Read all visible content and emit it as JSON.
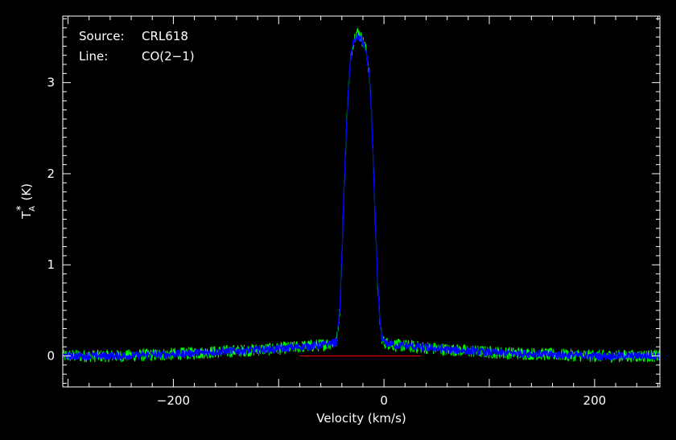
{
  "chart_data": {
    "type": "line",
    "title": "",
    "annotations": {
      "source_label": "Source:",
      "source_value": "CRL618",
      "line_label": "Line:",
      "line_value": "CO(2−1)"
    },
    "xlabel": "Velocity (km/s)",
    "ylabel": {
      "main": "T",
      "superscript": "*",
      "subscript": "A",
      "unit": "(K)"
    },
    "xlim": [
      -305,
      262
    ],
    "ylim": [
      -0.34,
      3.73
    ],
    "x_ticks": [
      -200,
      0,
      200
    ],
    "x_tick_labels": [
      "−200",
      "0",
      "200"
    ],
    "y_ticks": [
      0,
      1,
      2,
      3
    ],
    "y_tick_labels": [
      "0",
      "1",
      "2",
      "3"
    ],
    "grid": false,
    "series": [
      {
        "color": "#00ff00",
        "noise_amplitude": 0.07,
        "x": [
          -305,
          -250,
          -200,
          -150,
          -100,
          -60,
          -45,
          -42,
          -40,
          -38,
          -36,
          -34,
          -32,
          -30,
          -28,
          -26,
          -24,
          -22,
          -20,
          -18,
          -16,
          -14,
          -12,
          -10,
          -8,
          -6,
          -4,
          -2,
          0,
          10,
          30,
          60,
          100,
          150,
          200,
          262
        ],
        "values": [
          0.0,
          0.0,
          0.02,
          0.05,
          0.08,
          0.12,
          0.15,
          0.5,
          1.1,
          1.8,
          2.4,
          2.9,
          3.2,
          3.4,
          3.5,
          3.55,
          3.55,
          3.5,
          3.45,
          3.4,
          3.3,
          3.1,
          2.7,
          2.1,
          1.4,
          0.8,
          0.4,
          0.2,
          0.15,
          0.12,
          0.1,
          0.07,
          0.04,
          0.02,
          0.0,
          0.0
        ]
      },
      {
        "color": "#0000ff",
        "noise_amplitude": 0.045,
        "x": [
          -305,
          -250,
          -200,
          -150,
          -100,
          -60,
          -45,
          -42,
          -40,
          -38,
          -36,
          -34,
          -32,
          -30,
          -28,
          -26,
          -24,
          -22,
          -20,
          -18,
          -16,
          -14,
          -12,
          -10,
          -8,
          -6,
          -4,
          -2,
          0,
          10,
          30,
          60,
          100,
          150,
          200,
          262
        ],
        "values": [
          0.0,
          0.0,
          0.02,
          0.05,
          0.08,
          0.12,
          0.15,
          0.5,
          1.1,
          1.8,
          2.4,
          2.9,
          3.2,
          3.4,
          3.47,
          3.5,
          3.5,
          3.47,
          3.43,
          3.38,
          3.28,
          3.08,
          2.68,
          2.08,
          1.4,
          0.8,
          0.4,
          0.2,
          0.15,
          0.12,
          0.1,
          0.07,
          0.04,
          0.02,
          0.0,
          0.0
        ]
      }
    ],
    "baseline": {
      "color": "#ff0000",
      "x_range": [
        -80,
        35
      ],
      "y": 0
    },
    "colors": {
      "background": "#000000",
      "frame": "#ffffff",
      "text": "#ffffff"
    }
  }
}
